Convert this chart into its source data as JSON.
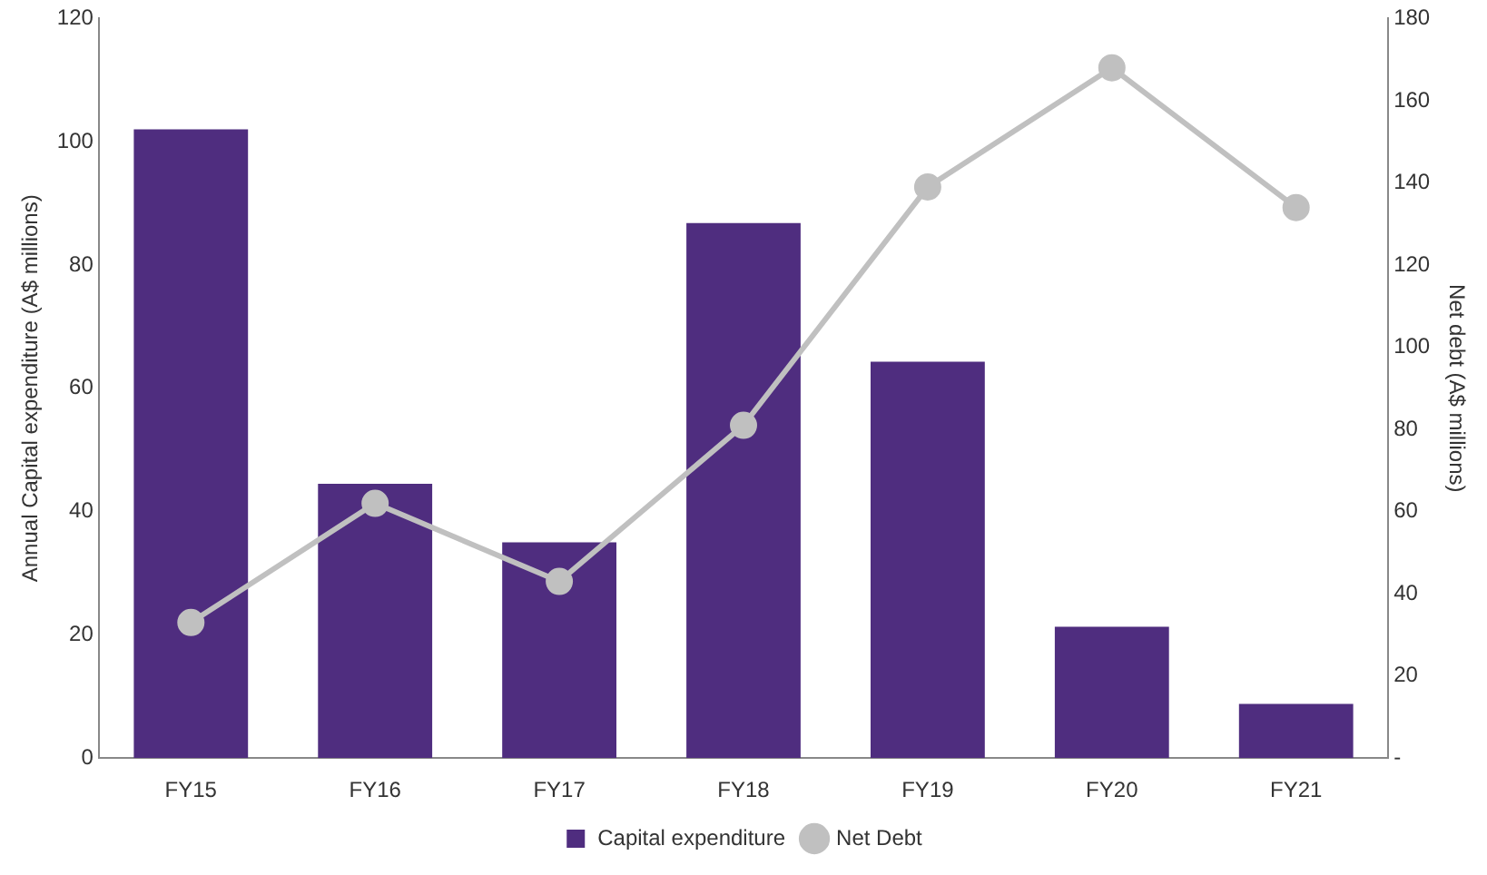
{
  "chart_data": {
    "type": "bar",
    "categories": [
      "FY15",
      "FY16",
      "FY17",
      "FY18",
      "FY19",
      "FY20",
      "FY21"
    ],
    "series": [
      {
        "name": "Capital expenditure",
        "color": "#4f2d7f",
        "values": [
          102,
          44.5,
          35,
          86.8,
          64.3,
          21.3,
          8.8
        ]
      },
      {
        "name": "Net Debt",
        "type": "line",
        "axis": "y2",
        "color": "#c0c0c0",
        "values": [
          33,
          62,
          43,
          81,
          139,
          168,
          134
        ]
      }
    ],
    "ylabel": "Annual Capital expenditure (A$ millions)",
    "y2label": "Net debt (A$ millions)",
    "ylim": [
      0,
      120
    ],
    "yticks": [
      0,
      20,
      40,
      60,
      80,
      100,
      120
    ],
    "y2lim": [
      0,
      180
    ],
    "y2ticks": [
      {
        "value": 0,
        "label": "-"
      },
      20,
      40,
      60,
      80,
      100,
      120,
      140,
      160,
      180
    ],
    "grid": false,
    "legend": "bottom",
    "marker": "circle",
    "line_style": "solid"
  }
}
